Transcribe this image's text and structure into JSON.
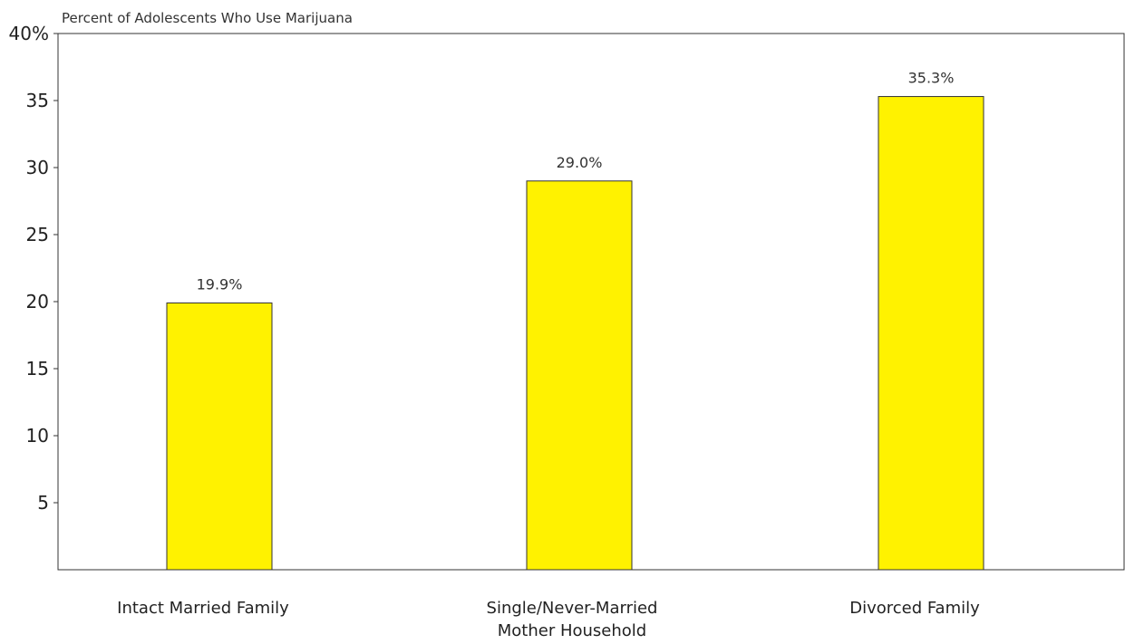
{
  "chart_data": {
    "type": "bar",
    "title": "",
    "xlabel": "",
    "ylabel": "Percent of Adolescents Who Use Marijuana",
    "categories": [
      [
        "Intact Married Family"
      ],
      [
        "Single/Never-Married",
        "Mother Household"
      ],
      [
        "Divorced Family"
      ]
    ],
    "values": [
      19.9,
      29.0,
      35.3
    ],
    "data_labels": [
      "19.9%",
      "29.0%",
      "35.3%"
    ],
    "ylim": [
      0,
      40
    ],
    "yticks": [
      5,
      10,
      15,
      20,
      25,
      30,
      35,
      40
    ],
    "ytick_labels": [
      "5",
      "10",
      "15",
      "20",
      "25",
      "30",
      "35",
      "40%"
    ],
    "bar_color": "#FFF200",
    "bar_edge_color": "#333333",
    "grid": false,
    "legend": false
  }
}
